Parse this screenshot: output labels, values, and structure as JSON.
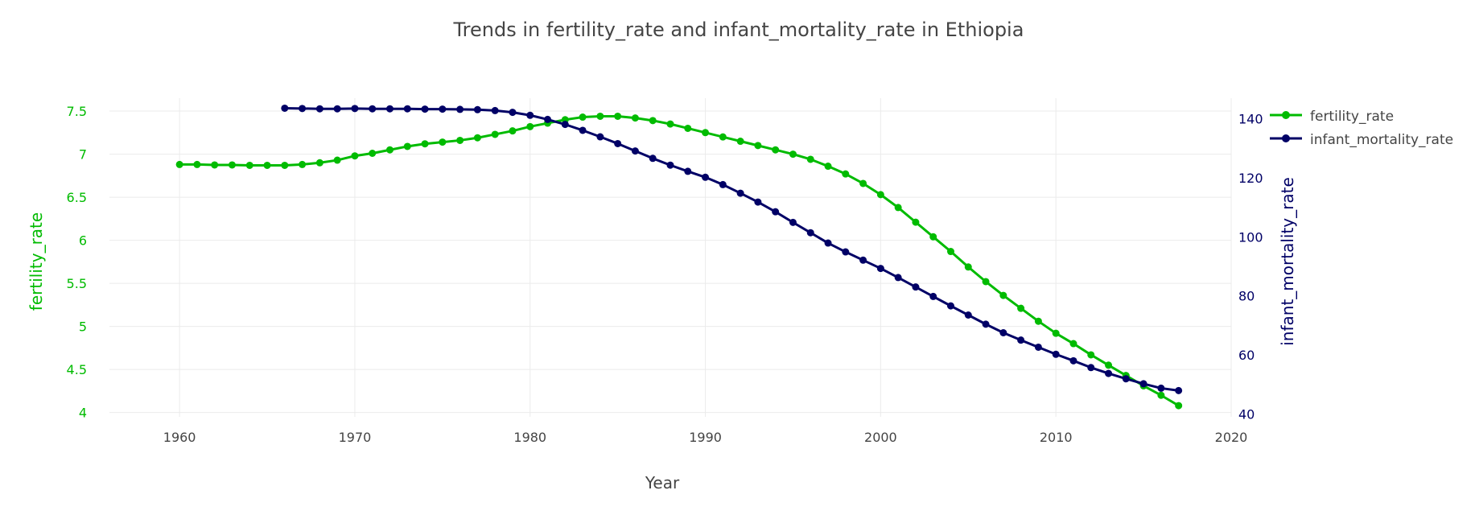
{
  "chart_data": {
    "type": "line",
    "title": "Trends in fertility_rate and infant_mortality_rate in Ethiopia",
    "xlabel": "Year",
    "ylabel_left": "fertility_rate",
    "ylabel_right": "infant_mortality_rate",
    "xlim": [
      1956,
      2020
    ],
    "ylim_left": [
      3.95,
      7.65
    ],
    "ylim_right": [
      39,
      147
    ],
    "x_ticks": [
      "1960",
      "1970",
      "1980",
      "1990",
      "2000",
      "2010",
      "2020"
    ],
    "y_left_ticks": [
      "4",
      "4.5",
      "5",
      "5.5",
      "6",
      "6.5",
      "7",
      "7.5"
    ],
    "y_right_ticks": [
      "40",
      "60",
      "80",
      "100",
      "120",
      "140"
    ],
    "grid": true,
    "legend_position": "top-right",
    "colors": {
      "fertility_rate": "#00bb00",
      "infant_mortality_rate": "#000066"
    },
    "series": [
      {
        "name": "fertility_rate",
        "axis": "left",
        "x": [
          1960,
          1961,
          1962,
          1963,
          1964,
          1965,
          1966,
          1967,
          1968,
          1969,
          1970,
          1971,
          1972,
          1973,
          1974,
          1975,
          1976,
          1977,
          1978,
          1979,
          1980,
          1981,
          1982,
          1983,
          1984,
          1985,
          1986,
          1987,
          1988,
          1989,
          1990,
          1991,
          1992,
          1993,
          1994,
          1995,
          1996,
          1997,
          1998,
          1999,
          2000,
          2001,
          2002,
          2003,
          2004,
          2005,
          2006,
          2007,
          2008,
          2009,
          2010,
          2011,
          2012,
          2013,
          2014,
          2015,
          2016,
          2017
        ],
        "y": [
          6.88,
          6.88,
          6.875,
          6.875,
          6.87,
          6.87,
          6.87,
          6.88,
          6.9,
          6.93,
          6.98,
          7.01,
          7.05,
          7.09,
          7.12,
          7.14,
          7.16,
          7.19,
          7.23,
          7.27,
          7.32,
          7.36,
          7.4,
          7.43,
          7.44,
          7.44,
          7.42,
          7.39,
          7.35,
          7.3,
          7.25,
          7.2,
          7.15,
          7.1,
          7.05,
          7.0,
          6.94,
          6.86,
          6.77,
          6.66,
          6.53,
          6.38,
          6.21,
          6.04,
          5.87,
          5.69,
          5.52,
          5.36,
          5.21,
          5.06,
          4.92,
          4.8,
          4.67,
          4.55,
          4.43,
          4.31,
          4.2,
          4.08
        ]
      },
      {
        "name": "infant_mortality_rate",
        "axis": "right",
        "x": [
          1966,
          1967,
          1968,
          1969,
          1970,
          1971,
          1972,
          1973,
          1974,
          1975,
          1976,
          1977,
          1978,
          1979,
          1980,
          1981,
          1982,
          1983,
          1984,
          1985,
          1986,
          1987,
          1988,
          1989,
          1990,
          1991,
          1992,
          1993,
          1994,
          1995,
          1996,
          1997,
          1998,
          1999,
          2000,
          2001,
          2002,
          2003,
          2004,
          2005,
          2006,
          2007,
          2008,
          2009,
          2010,
          2011,
          2012,
          2013,
          2014,
          2015,
          2016,
          2017
        ],
        "y": [
          143.6,
          143.5,
          143.4,
          143.4,
          143.5,
          143.4,
          143.4,
          143.4,
          143.3,
          143.3,
          143.2,
          143.1,
          142.8,
          142.2,
          141.2,
          139.8,
          138.1,
          136.1,
          133.9,
          131.6,
          129.1,
          126.6,
          124.3,
          122.2,
          120.2,
          117.7,
          114.8,
          111.8,
          108.5,
          104.9,
          101.4,
          97.9,
          94.9,
          92.1,
          89.3,
          86.2,
          83.0,
          79.8,
          76.6,
          73.5,
          70.4,
          67.5,
          65.0,
          62.6,
          60.2,
          58.0,
          55.7,
          53.7,
          51.9,
          50.2,
          48.7,
          47.9
        ]
      }
    ]
  }
}
